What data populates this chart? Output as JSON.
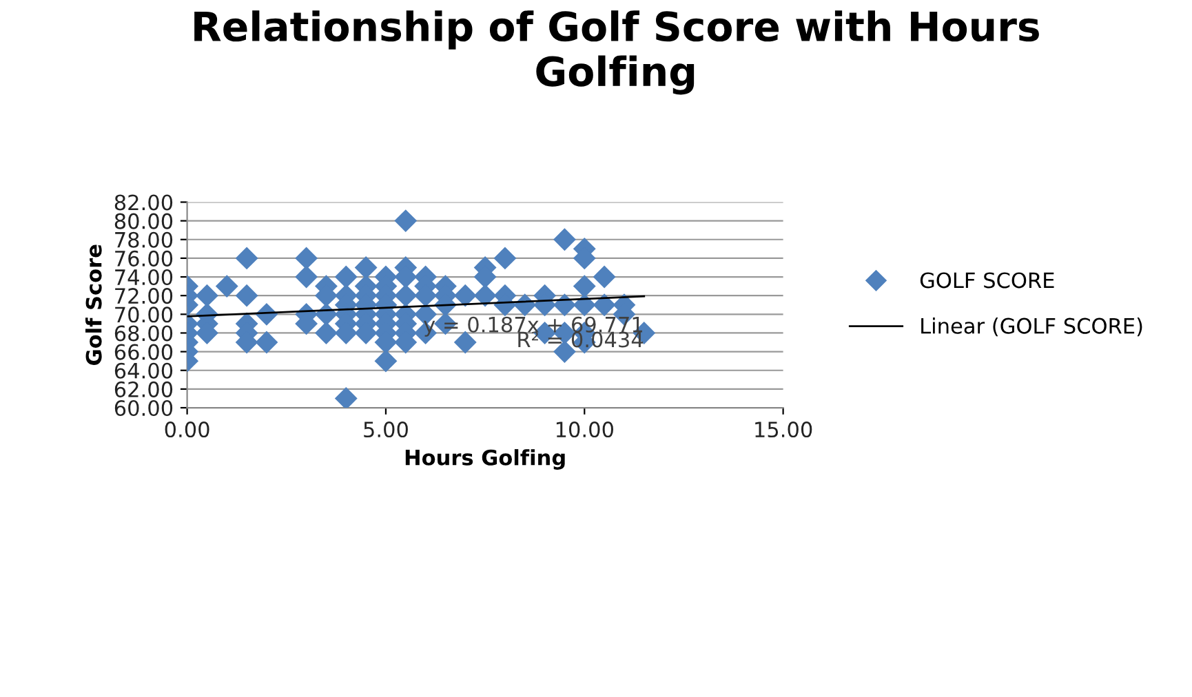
{
  "chart_data": {
    "type": "scatter",
    "title": "Relationship of Golf Score with Hours Golfing",
    "xlabel": "Hours Golfing",
    "ylabel": "Golf Score",
    "series": [
      {
        "name": "GOLF SCORE",
        "color": "#4f81bd",
        "marker": "diamond",
        "x": [
          0,
          0,
          0,
          0,
          0,
          0,
          0,
          0,
          0.5,
          0.5,
          0.5,
          0.5,
          1,
          1.5,
          1.5,
          1.5,
          1.5,
          1.5,
          2,
          2,
          3,
          3,
          3,
          3,
          3.5,
          3.5,
          3.5,
          3.5,
          4,
          4,
          4,
          4,
          4,
          4,
          4,
          4.5,
          4.5,
          4.5,
          4.5,
          4.5,
          4.5,
          4.5,
          5,
          5,
          5,
          5,
          5,
          5,
          5,
          5,
          5,
          5.5,
          5.5,
          5.5,
          5.5,
          5.5,
          5.5,
          5.5,
          5.5,
          6,
          6,
          6,
          6,
          6,
          6.5,
          6.5,
          6.5,
          6.5,
          7,
          7,
          7.5,
          7.5,
          7.5,
          8,
          8,
          8,
          8.5,
          9,
          9,
          9,
          9.5,
          9.5,
          9.5,
          9.5,
          10,
          10,
          10,
          10,
          10,
          10,
          10.5,
          10.5,
          11,
          11,
          11.5
        ],
        "values": [
          73,
          72,
          71,
          69,
          68,
          67,
          66,
          65,
          72,
          70,
          69,
          68,
          73,
          76,
          72,
          69,
          68,
          67,
          70,
          67,
          76,
          74,
          70,
          69,
          73,
          72,
          70,
          68,
          74,
          72,
          71,
          70,
          69,
          68,
          61,
          75,
          73,
          72,
          71,
          70,
          69,
          68,
          74,
          73,
          72,
          71,
          70,
          69,
          68,
          67,
          65,
          80,
          75,
          74,
          72,
          70,
          69,
          68,
          67,
          74,
          73,
          72,
          70,
          68,
          73,
          72,
          71,
          69,
          72,
          67,
          75,
          74,
          72,
          76,
          72,
          71,
          71,
          72,
          71,
          68,
          78,
          71,
          68,
          66,
          77,
          76,
          73,
          71,
          68,
          67,
          74,
          71,
          71,
          70,
          68
        ]
      },
      {
        "name": "Linear (GOLF SCORE)",
        "type": "line",
        "color": "#000000",
        "line_style": "solid",
        "x": [
          0,
          11.5
        ],
        "values": [
          69.77,
          71.92
        ]
      }
    ],
    "annotations": [
      {
        "text": "y = 0.187x + 69.771",
        "x": 11.5,
        "y": 68.7
      },
      {
        "text": "R² = 0.0434",
        "x": 11.5,
        "y": 67.1
      }
    ],
    "xlim": [
      0,
      15
    ],
    "ylim": [
      60,
      82
    ],
    "xticks": [
      {
        "value": 0,
        "label": "0.00"
      },
      {
        "value": 5,
        "label": "5.00"
      },
      {
        "value": 10,
        "label": "10.00"
      },
      {
        "value": 15,
        "label": "15.00"
      }
    ],
    "yticks": [
      {
        "value": 60,
        "label": "60.00"
      },
      {
        "value": 62,
        "label": "62.00"
      },
      {
        "value": 64,
        "label": "64.00"
      },
      {
        "value": 66,
        "label": "66.00"
      },
      {
        "value": 68,
        "label": "68.00"
      },
      {
        "value": 70,
        "label": "70.00"
      },
      {
        "value": 72,
        "label": "72.00"
      },
      {
        "value": 74,
        "label": "74.00"
      },
      {
        "value": 76,
        "label": "76.00"
      },
      {
        "value": 78,
        "label": "78.00"
      },
      {
        "value": 80,
        "label": "80.00"
      },
      {
        "value": 82,
        "label": "82.00"
      }
    ],
    "grid": "y",
    "legend": "right"
  }
}
